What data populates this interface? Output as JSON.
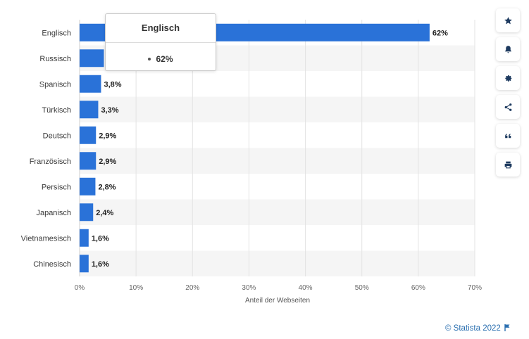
{
  "chart_data": {
    "type": "bar",
    "orientation": "horizontal",
    "categories": [
      "Englisch",
      "Russisch",
      "Spanisch",
      "Türkisch",
      "Deutsch",
      "Französisch",
      "Persisch",
      "Japanisch",
      "Vietnamesisch",
      "Chinesisch"
    ],
    "values": [
      62,
      4.3,
      3.8,
      3.3,
      2.9,
      2.9,
      2.8,
      2.4,
      1.6,
      1.6
    ],
    "value_labels": [
      "62%",
      "",
      "3,8%",
      "3,3%",
      "2,9%",
      "2,9%",
      "2,8%",
      "2,4%",
      "1,6%",
      "1,6%"
    ],
    "xlim": [
      0,
      70
    ],
    "x_ticks": [
      0,
      10,
      20,
      30,
      40,
      50,
      60,
      70
    ],
    "x_tick_labels": [
      "0%",
      "10%",
      "20%",
      "30%",
      "40%",
      "50%",
      "60%",
      "70%"
    ],
    "xlabel": "Anteil der Webseiten",
    "ylabel": "",
    "title": "",
    "grid": true,
    "bar_color": "#2a72d8",
    "stripe_color": "#f5f5f5"
  },
  "tooltip": {
    "title": "Englisch",
    "value": "62%"
  },
  "toolbar": {
    "buttons": [
      {
        "name": "star-icon"
      },
      {
        "name": "bell-icon"
      },
      {
        "name": "gear-icon"
      },
      {
        "name": "share-icon"
      },
      {
        "name": "quote-icon"
      },
      {
        "name": "print-icon"
      }
    ]
  },
  "footer": {
    "copyright": "© Statista 2022"
  }
}
